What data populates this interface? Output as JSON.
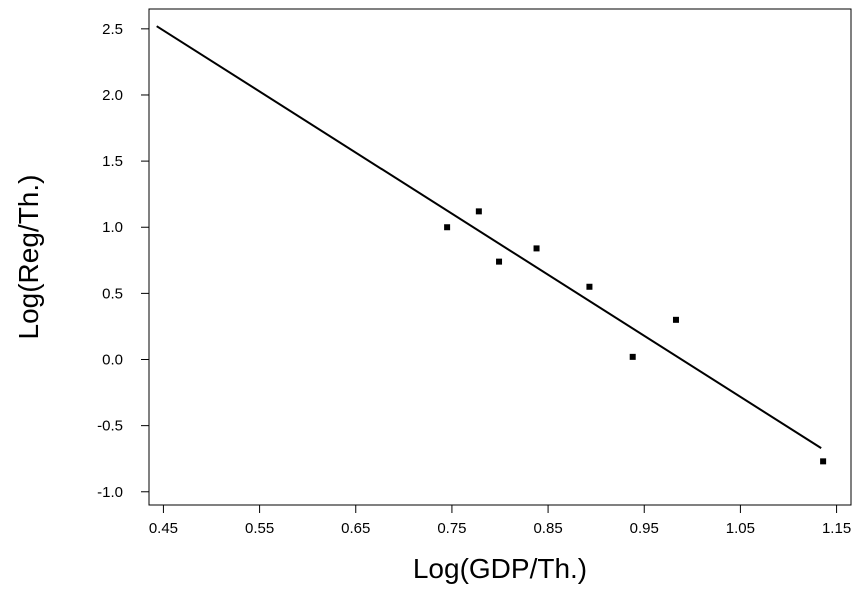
{
  "chart_data": {
    "type": "scatter",
    "title": "",
    "xlabel": "Log(GDP/Th.)",
    "ylabel": "Log(Reg/Th.)",
    "xlim": [
      0.435,
      1.165
    ],
    "ylim": [
      -1.1,
      2.65
    ],
    "xticks": [
      0.45,
      0.55,
      0.65,
      0.75,
      0.85,
      0.95,
      1.05,
      1.15
    ],
    "xtick_labels": [
      "0.45",
      "0.55",
      "0.65",
      "0.75",
      "0.85",
      "0.95",
      "1.05",
      "1.15"
    ],
    "yticks": [
      -1.0,
      -0.5,
      0.0,
      0.5,
      1.0,
      1.5,
      2.0,
      2.5
    ],
    "ytick_labels": [
      "-1.0",
      "-0.5",
      "0.0",
      "0.5",
      "1.0",
      "1.5",
      "2.0",
      "2.5"
    ],
    "grid": false,
    "legend": "none",
    "series": [
      {
        "type": "scatter",
        "points": [
          {
            "x": 0.745,
            "y": 1.0
          },
          {
            "x": 0.778,
            "y": 1.12
          },
          {
            "x": 0.799,
            "y": 0.74
          },
          {
            "x": 0.838,
            "y": 0.84
          },
          {
            "x": 0.893,
            "y": 0.55
          },
          {
            "x": 0.938,
            "y": 0.02
          },
          {
            "x": 0.983,
            "y": 0.3
          },
          {
            "x": 1.136,
            "y": -0.77
          }
        ]
      },
      {
        "type": "line",
        "points": [
          {
            "x": 0.443,
            "y": 2.52
          },
          {
            "x": 1.134,
            "y": -0.67
          }
        ]
      }
    ],
    "colors": {
      "marks": "#000000",
      "background": "#ffffff"
    }
  }
}
